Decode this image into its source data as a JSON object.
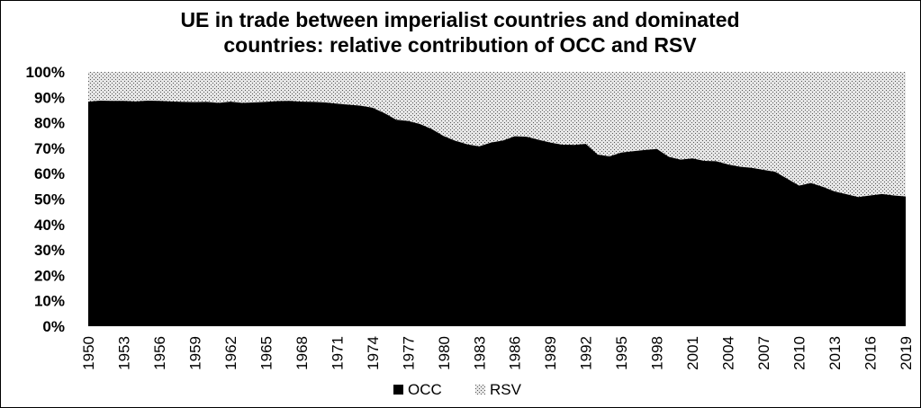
{
  "chart_data": {
    "type": "area",
    "title": "UE in trade between imperialist countries and dominated countries: relative contribution of OCC and RSV",
    "title_lines": [
      "UE in trade between imperialist countries and dominated",
      "countries: relative contribution of OCC and RSV"
    ],
    "xlabel": "",
    "ylabel": "",
    "stacked": "percent",
    "ylim": [
      0,
      100
    ],
    "y_ticks": [
      "0%",
      "10%",
      "20%",
      "30%",
      "40%",
      "50%",
      "60%",
      "70%",
      "80%",
      "90%",
      "100%"
    ],
    "x": [
      1950,
      1951,
      1952,
      1953,
      1954,
      1955,
      1956,
      1957,
      1958,
      1959,
      1960,
      1961,
      1962,
      1963,
      1964,
      1965,
      1966,
      1967,
      1968,
      1969,
      1970,
      1971,
      1972,
      1973,
      1974,
      1975,
      1976,
      1977,
      1978,
      1979,
      1980,
      1981,
      1982,
      1983,
      1984,
      1985,
      1986,
      1987,
      1988,
      1989,
      1990,
      1991,
      1992,
      1993,
      1994,
      1995,
      1996,
      1997,
      1998,
      1999,
      2000,
      2001,
      2002,
      2003,
      2004,
      2005,
      2006,
      2007,
      2008,
      2009,
      2010,
      2011,
      2012,
      2013,
      2014,
      2015,
      2016,
      2017,
      2018,
      2019
    ],
    "x_tick_labels": [
      "1950",
      "1953",
      "1956",
      "1959",
      "1962",
      "1965",
      "1968",
      "1971",
      "1974",
      "1977",
      "1980",
      "1983",
      "1986",
      "1989",
      "1992",
      "1995",
      "1998",
      "2001",
      "2004",
      "2007",
      "2010",
      "2013",
      "2016",
      "2019"
    ],
    "grid": false,
    "legend_position": "bottom",
    "series": [
      {
        "name": "OCC",
        "color": "#000000",
        "values": [
          88.3,
          88.7,
          88.6,
          88.6,
          88.4,
          88.7,
          88.6,
          88.4,
          88.2,
          88.1,
          88.2,
          87.8,
          88.3,
          87.8,
          88.0,
          88.2,
          88.5,
          88.6,
          88.3,
          88.2,
          88.0,
          87.5,
          87.1,
          86.7,
          85.9,
          83.8,
          81.2,
          80.7,
          79.5,
          77.5,
          74.8,
          72.9,
          71.5,
          70.7,
          72.2,
          73.0,
          74.7,
          74.5,
          73.3,
          72.2,
          71.4,
          71.3,
          71.7,
          67.5,
          66.8,
          68.3,
          68.8,
          69.3,
          69.7,
          66.6,
          65.5,
          66.0,
          65.0,
          64.9,
          63.6,
          62.7,
          62.3,
          61.5,
          60.7,
          58.0,
          55.3,
          56.3,
          54.8,
          53.0,
          51.9,
          50.8,
          51.4,
          52.0,
          51.4,
          51.0
        ]
      },
      {
        "name": "RSV",
        "color": "#bdbdbd",
        "pattern": "dotted",
        "values": [
          11.7,
          11.3,
          11.4,
          11.4,
          11.6,
          11.3,
          11.4,
          11.6,
          11.8,
          11.9,
          11.8,
          12.2,
          11.7,
          12.2,
          12.0,
          11.8,
          11.5,
          11.4,
          11.7,
          11.8,
          12.0,
          12.5,
          12.9,
          13.3,
          14.1,
          16.2,
          18.8,
          19.3,
          20.5,
          22.5,
          25.2,
          27.1,
          28.5,
          29.3,
          27.8,
          27.0,
          25.3,
          25.5,
          26.7,
          27.8,
          28.6,
          28.7,
          28.3,
          32.5,
          33.2,
          31.7,
          31.2,
          30.7,
          30.3,
          33.4,
          34.5,
          34.0,
          35.0,
          35.1,
          36.4,
          37.3,
          37.7,
          38.5,
          39.3,
          42.0,
          44.7,
          43.7,
          45.2,
          47.0,
          48.1,
          49.2,
          48.6,
          48.0,
          48.6,
          49.0
        ]
      }
    ]
  }
}
